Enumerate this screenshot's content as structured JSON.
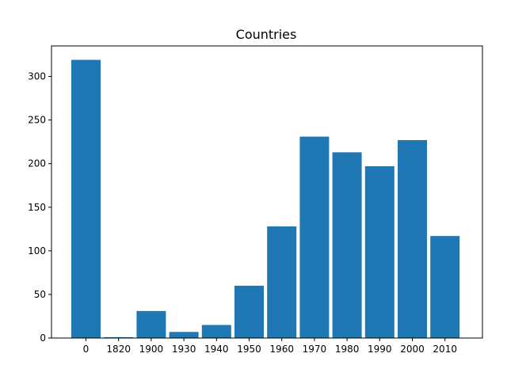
{
  "chart_data": {
    "type": "bar",
    "title": "Countries",
    "xlabel": "",
    "ylabel": "",
    "categories": [
      "0",
      "1820",
      "1900",
      "1930",
      "1940",
      "1950",
      "1960",
      "1970",
      "1980",
      "1990",
      "2000",
      "2010"
    ],
    "values": [
      319,
      1,
      31,
      7,
      15,
      60,
      128,
      231,
      213,
      197,
      227,
      117
    ],
    "ylim": [
      0,
      335
    ],
    "yticks": [
      0,
      50,
      100,
      150,
      200,
      250,
      300
    ],
    "grid": false,
    "legend": "none",
    "bar_color": "#1f77b4"
  }
}
